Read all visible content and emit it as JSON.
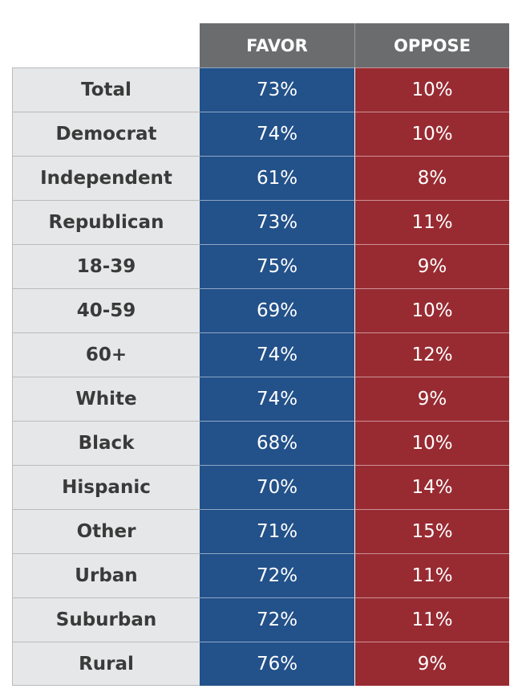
{
  "chart_data": {
    "type": "table",
    "columns": [
      "FAVOR",
      "OPPOSE"
    ],
    "rows": [
      {
        "label": "Total",
        "favor": "73%",
        "oppose": "10%"
      },
      {
        "label": "Democrat",
        "favor": "74%",
        "oppose": "10%"
      },
      {
        "label": "Independent",
        "favor": "61%",
        "oppose": "8%"
      },
      {
        "label": "Republican",
        "favor": "73%",
        "oppose": "11%"
      },
      {
        "label": "18-39",
        "favor": "75%",
        "oppose": "9%"
      },
      {
        "label": "40-59",
        "favor": "69%",
        "oppose": "10%"
      },
      {
        "label": "60+",
        "favor": "74%",
        "oppose": "12%"
      },
      {
        "label": "White",
        "favor": "74%",
        "oppose": "9%"
      },
      {
        "label": "Black",
        "favor": "68%",
        "oppose": "10%"
      },
      {
        "label": "Hispanic",
        "favor": "70%",
        "oppose": "14%"
      },
      {
        "label": "Other",
        "favor": "71%",
        "oppose": "15%"
      },
      {
        "label": "Urban",
        "favor": "72%",
        "oppose": "11%"
      },
      {
        "label": "Suburban",
        "favor": "72%",
        "oppose": "11%"
      },
      {
        "label": "Rural",
        "favor": "76%",
        "oppose": "9%"
      }
    ]
  },
  "colors": {
    "header_bg": "#6b6c6e",
    "label_bg": "#e6e7e8",
    "favor_bg": "#23518a",
    "oppose_bg": "#982b32"
  }
}
